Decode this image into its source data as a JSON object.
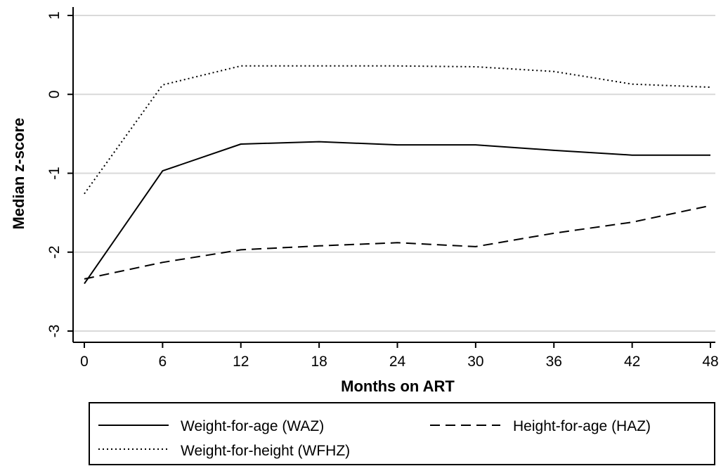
{
  "chart_data": {
    "type": "line",
    "xlabel": "Months on ART",
    "ylabel": "Median z-score",
    "x": [
      0,
      6,
      12,
      18,
      24,
      30,
      36,
      42,
      48
    ],
    "xticks": [
      "0",
      "6",
      "12",
      "18",
      "24",
      "30",
      "36",
      "42",
      "48"
    ],
    "yticks": [
      "-3",
      "-2",
      "-1",
      "0",
      "1"
    ],
    "xlim": [
      0,
      48
    ],
    "ylim": [
      -3,
      1
    ],
    "grid": "horizontal",
    "legend_position": "bottom",
    "series": [
      {
        "name": "Weight-for-age (WAZ)",
        "style": "solid",
        "values": [
          -2.4,
          -0.97,
          -0.63,
          -0.6,
          -0.64,
          -0.64,
          -0.71,
          -0.77,
          -0.77
        ]
      },
      {
        "name": "Height-for-age (HAZ)",
        "style": "dashed",
        "values": [
          -2.34,
          -2.13,
          -1.97,
          -1.92,
          -1.88,
          -1.93,
          -1.76,
          -1.62,
          -1.41
        ]
      },
      {
        "name": "Weight-for-height (WFHZ)",
        "style": "dotted",
        "values": [
          -1.26,
          0.12,
          0.36,
          0.36,
          0.36,
          0.35,
          0.29,
          0.13,
          0.09
        ]
      }
    ],
    "colors": {
      "line": "#000000",
      "grid": "#d9d9d9",
      "background": "#ffffff"
    }
  }
}
